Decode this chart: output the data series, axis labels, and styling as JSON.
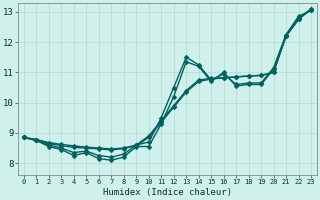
{
  "xlabel": "Humidex (Indice chaleur)",
  "xlim": [
    -0.5,
    23.5
  ],
  "ylim": [
    7.6,
    13.3
  ],
  "xticks": [
    0,
    1,
    2,
    3,
    4,
    5,
    6,
    7,
    8,
    9,
    10,
    11,
    12,
    13,
    14,
    15,
    16,
    17,
    18,
    19,
    20,
    21,
    22,
    23
  ],
  "yticks": [
    8,
    9,
    10,
    11,
    12,
    13
  ],
  "bg_color": "#cff0eb",
  "grid_color": "#b8ddd8",
  "line_color": "#006060",
  "line_width": 1.0,
  "marker": "D",
  "marker_size": 2.5,
  "curves": [
    {
      "x": [
        0,
        1,
        2,
        3,
        4,
        5,
        6,
        7,
        8,
        9,
        10,
        11,
        12,
        13,
        14,
        15,
        16,
        17,
        18,
        19,
        20,
        21,
        22,
        23
      ],
      "y": [
        8.85,
        8.78,
        8.68,
        8.62,
        8.57,
        8.53,
        8.5,
        8.47,
        8.5,
        8.6,
        8.9,
        9.4,
        9.9,
        10.4,
        10.75,
        10.8,
        10.82,
        10.85,
        10.88,
        10.9,
        11.0,
        12.2,
        12.75,
        13.1
      ]
    },
    {
      "x": [
        0,
        1,
        2,
        3,
        4,
        5,
        6,
        7,
        8,
        9,
        10,
        11,
        12,
        13,
        14,
        15,
        16,
        17,
        18,
        19,
        20,
        21,
        22,
        23
      ],
      "y": [
        8.85,
        8.75,
        8.55,
        8.45,
        8.25,
        8.35,
        8.15,
        8.1,
        8.2,
        8.55,
        8.55,
        9.3,
        10.2,
        11.35,
        11.2,
        10.7,
        11.0,
        10.55,
        10.6,
        10.6,
        11.1,
        12.2,
        12.8,
        13.05
      ]
    },
    {
      "x": [
        0,
        1,
        2,
        3,
        4,
        5,
        6,
        7,
        8,
        9,
        10,
        11,
        12,
        13,
        14,
        15,
        16,
        17,
        18,
        19,
        20,
        21,
        22,
        23
      ],
      "y": [
        8.85,
        8.75,
        8.6,
        8.5,
        8.35,
        8.4,
        8.25,
        8.2,
        8.3,
        8.6,
        8.7,
        9.5,
        10.5,
        11.5,
        11.25,
        10.75,
        10.95,
        10.6,
        10.65,
        10.65,
        11.15,
        12.25,
        12.85,
        13.05
      ]
    },
    {
      "x": [
        0,
        1,
        2,
        3,
        4,
        5,
        6,
        7,
        8,
        9,
        10,
        11,
        12,
        13,
        14,
        15,
        16,
        17,
        18,
        19,
        20,
        21,
        22,
        23
      ],
      "y": [
        8.85,
        8.78,
        8.65,
        8.58,
        8.52,
        8.5,
        8.47,
        8.44,
        8.48,
        8.58,
        8.85,
        9.35,
        9.85,
        10.35,
        10.7,
        10.78,
        10.82,
        10.85,
        10.88,
        10.9,
        11.0,
        12.2,
        12.75,
        13.1
      ]
    }
  ]
}
